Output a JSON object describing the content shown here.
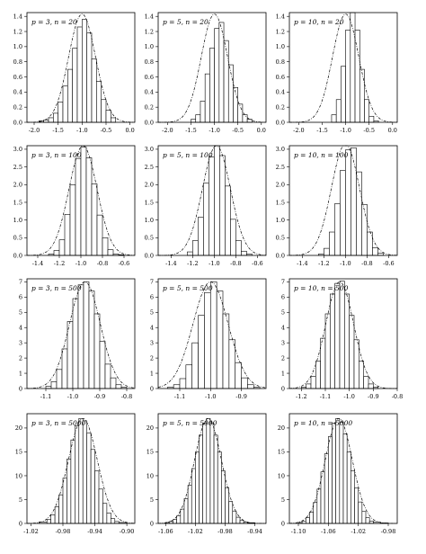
{
  "chart_data": [
    {
      "type": "bar",
      "annotation": "p = 3, n = 20",
      "xlim": [
        -2.15,
        0.1
      ],
      "ylim": [
        0,
        1.45
      ],
      "xticks": [
        -2.0,
        -1.5,
        -1.0,
        -0.5,
        0.0
      ],
      "xtick_labels": [
        "-2.0",
        "-1.5",
        "-1.0",
        "-0.5",
        "0.0"
      ],
      "yticks": [
        0,
        0.2,
        0.4,
        0.6,
        0.8,
        1.0,
        1.2,
        1.4
      ],
      "ytick_labels": [
        "0.0",
        "0.2",
        "0.4",
        "0.6",
        "0.8",
        "1.0",
        "1.2",
        "1.4"
      ],
      "bin_edges": [
        -1.9,
        -1.8,
        -1.7,
        -1.6,
        -1.5,
        -1.4,
        -1.3,
        -1.2,
        -1.1,
        -1.0,
        -0.9,
        -0.8,
        -0.7,
        -0.6,
        -0.5,
        -0.4,
        -0.3
      ],
      "values": [
        0.02,
        0.03,
        0.06,
        0.12,
        0.27,
        0.48,
        0.7,
        0.98,
        1.26,
        1.36,
        1.18,
        0.84,
        0.54,
        0.3,
        0.16,
        0.06
      ],
      "density": {
        "mean": -1.0,
        "sd": 0.28,
        "peak": 1.43
      }
    },
    {
      "type": "bar",
      "annotation": "p = 5, n = 20",
      "xlim": [
        -2.2,
        0.1
      ],
      "ylim": [
        0,
        1.45
      ],
      "xticks": [
        -2.0,
        -1.5,
        -1.0,
        -0.5,
        0.0
      ],
      "xtick_labels": [
        "-2.0",
        "-1.5",
        "-1.0",
        "-0.5",
        "0.0"
      ],
      "yticks": [
        0,
        0.2,
        0.4,
        0.6,
        0.8,
        1.0,
        1.2,
        1.4
      ],
      "ytick_labels": [
        "0.0",
        "0.2",
        "0.4",
        "0.6",
        "0.8",
        "1.0",
        "1.2",
        "1.4"
      ],
      "bin_edges": [
        -1.5,
        -1.4,
        -1.3,
        -1.2,
        -1.1,
        -1.0,
        -0.9,
        -0.8,
        -0.7,
        -0.6,
        -0.5,
        -0.4,
        -0.3,
        -0.2
      ],
      "values": [
        0.04,
        0.1,
        0.28,
        0.64,
        0.98,
        1.24,
        1.32,
        1.08,
        0.76,
        0.46,
        0.24,
        0.1,
        0.04
      ],
      "density": {
        "mean": -1.0,
        "sd": 0.28,
        "peak": 1.43
      }
    },
    {
      "type": "bar",
      "annotation": "p = 10, n = 20",
      "xlim": [
        -2.2,
        0.1
      ],
      "ylim": [
        0,
        1.45
      ],
      "xticks": [
        -2.0,
        -1.5,
        -1.0,
        -0.5,
        0.0
      ],
      "xtick_labels": [
        "-2.0",
        "-1.5",
        "-1.0",
        "-0.5",
        "0.0"
      ],
      "yticks": [
        0,
        0.2,
        0.4,
        0.6,
        0.8,
        1.0,
        1.2,
        1.4
      ],
      "ytick_labels": [
        "0.0",
        "0.2",
        "0.4",
        "0.6",
        "0.8",
        "1.0",
        "1.2",
        "1.4"
      ],
      "bin_edges": [
        -1.3,
        -1.2,
        -1.1,
        -1.0,
        -0.9,
        -0.8,
        -0.7,
        -0.6,
        -0.5,
        -0.4,
        -0.3
      ],
      "values": [
        0.1,
        0.3,
        0.74,
        1.22,
        1.45,
        1.22,
        0.7,
        0.3,
        0.08,
        0.02
      ],
      "density": {
        "mean": -1.0,
        "sd": 0.28,
        "peak": 1.43
      }
    },
    {
      "type": "bar",
      "annotation": "p = 3, n = 100",
      "xlim": [
        -1.5,
        -0.5
      ],
      "ylim": [
        0,
        3.1
      ],
      "xticks": [
        -1.4,
        -1.2,
        -1.0,
        -0.8,
        -0.6
      ],
      "xtick_labels": [
        "-1.4",
        "-1.2",
        "-1.0",
        "-0.8",
        "-0.6"
      ],
      "yticks": [
        0,
        0.5,
        1.0,
        1.5,
        2.0,
        2.5,
        3.0
      ],
      "ytick_labels": [
        "0.0",
        "0.5",
        "1.0",
        "1.5",
        "2.0",
        "2.5",
        "3.0"
      ],
      "bin_edges": [
        -1.3,
        -1.25,
        -1.2,
        -1.15,
        -1.1,
        -1.05,
        -1.0,
        -0.95,
        -0.9,
        -0.85,
        -0.8,
        -0.75,
        -0.7,
        -0.65,
        -0.6
      ],
      "values": [
        0.04,
        0.14,
        0.44,
        1.16,
        2.0,
        2.74,
        3.06,
        2.76,
        2.02,
        1.14,
        0.5,
        0.16,
        0.04,
        0.02
      ],
      "density": {
        "mean": -0.98,
        "sd": 0.13,
        "peak": 3.1
      }
    },
    {
      "type": "bar",
      "annotation": "p = 5, n = 100",
      "xlim": [
        -1.52,
        -0.52
      ],
      "ylim": [
        0,
        3.1
      ],
      "xticks": [
        -1.4,
        -1.2,
        -1.0,
        -0.8,
        -0.6
      ],
      "xtick_labels": [
        "-1.4",
        "-1.2",
        "-1.0",
        "-0.8",
        "-0.6"
      ],
      "yticks": [
        0,
        0.5,
        1.0,
        1.5,
        2.0,
        2.5,
        3.0
      ],
      "ytick_labels": [
        "0.0",
        "0.5",
        "1.0",
        "1.5",
        "2.0",
        "2.5",
        "3.0"
      ],
      "bin_edges": [
        -1.25,
        -1.2,
        -1.15,
        -1.1,
        -1.05,
        -1.0,
        -0.95,
        -0.9,
        -0.85,
        -0.8,
        -0.75,
        -0.7,
        -0.65
      ],
      "values": [
        0.1,
        0.42,
        1.08,
        2.04,
        2.78,
        3.1,
        2.82,
        1.96,
        1.02,
        0.42,
        0.12,
        0.04
      ],
      "density": {
        "mean": -0.98,
        "sd": 0.13,
        "peak": 3.1
      }
    },
    {
      "type": "bar",
      "annotation": "p = 10, n = 100",
      "xlim": [
        -1.52,
        -0.52
      ],
      "ylim": [
        0,
        3.1
      ],
      "xticks": [
        -1.4,
        -1.2,
        -1.0,
        -0.8,
        -0.6
      ],
      "xtick_labels": [
        "-1.4",
        "-1.2",
        "-1.0",
        "-0.8",
        "-0.6"
      ],
      "yticks": [
        0,
        0.5,
        1.0,
        1.5,
        2.0,
        2.5,
        3.0
      ],
      "ytick_labels": [
        "0.0",
        "0.5",
        "1.0",
        "1.5",
        "2.0",
        "2.5",
        "3.0"
      ],
      "bin_edges": [
        -1.25,
        -1.2,
        -1.15,
        -1.1,
        -1.05,
        -1.0,
        -0.95,
        -0.9,
        -0.85,
        -0.8,
        -0.75,
        -0.7,
        -0.65
      ],
      "values": [
        0.04,
        0.2,
        0.66,
        1.46,
        2.4,
        2.98,
        3.04,
        2.36,
        1.44,
        0.66,
        0.22,
        0.06
      ],
      "density": {
        "mean": -1.0,
        "sd": 0.13,
        "peak": 3.15
      }
    },
    {
      "type": "bar",
      "annotation": "p = 3, n = 500",
      "xlim": [
        -1.17,
        -0.77
      ],
      "ylim": [
        0,
        7.2
      ],
      "xticks": [
        -1.1,
        -1.0,
        -0.9,
        -0.8
      ],
      "xtick_labels": [
        "-1.1",
        "-1.0",
        "-0.9",
        "-0.8"
      ],
      "yticks": [
        0,
        1,
        2,
        3,
        4,
        5,
        6,
        7
      ],
      "ytick_labels": [
        "0",
        "1",
        "2",
        "3",
        "4",
        "5",
        "6",
        "7"
      ],
      "bin_edges": [
        -1.1,
        -1.08,
        -1.06,
        -1.04,
        -1.02,
        -1.0,
        -0.98,
        -0.96,
        -0.94,
        -0.92,
        -0.9,
        -0.88,
        -0.86,
        -0.84,
        -0.82,
        -0.8
      ],
      "values": [
        0.15,
        0.45,
        1.25,
        2.6,
        4.4,
        5.9,
        6.8,
        7.0,
        6.4,
        4.9,
        3.1,
        1.6,
        0.7,
        0.25,
        0.1
      ],
      "density": {
        "mean": -0.955,
        "sd": 0.057,
        "peak": 7.0
      }
    },
    {
      "type": "bar",
      "annotation": "p = 5, n = 500",
      "xlim": [
        -1.17,
        -0.82
      ],
      "ylim": [
        0,
        7.2
      ],
      "xticks": [
        -1.1,
        -1.0,
        -0.9
      ],
      "xtick_labels": [
        "-1.1",
        "-1.0",
        "-0.9"
      ],
      "yticks": [
        0,
        1,
        2,
        3,
        4,
        5,
        6,
        7
      ],
      "ytick_labels": [
        "0",
        "1",
        "2",
        "3",
        "4",
        "5",
        "6",
        "7"
      ],
      "bin_edges": [
        -1.14,
        -1.12,
        -1.1,
        -1.08,
        -1.06,
        -1.04,
        -1.02,
        -1.0,
        -0.98,
        -0.96,
        -0.94,
        -0.92,
        -0.9,
        -0.88,
        -0.86,
        -0.84
      ],
      "values": [
        0.08,
        0.25,
        0.65,
        1.55,
        3.0,
        4.8,
        6.3,
        7.0,
        6.4,
        4.9,
        3.2,
        1.7,
        0.7,
        0.25,
        0.08
      ],
      "density": {
        "mean": -1.0,
        "sd": 0.057,
        "peak": 7.0
      }
    },
    {
      "type": "bar",
      "annotation": "p = 10, n = 500",
      "xlim": [
        -1.25,
        -0.8
      ],
      "ylim": [
        0,
        7.2
      ],
      "xticks": [
        -1.2,
        -1.1,
        -1.0,
        -0.9,
        -0.8
      ],
      "xtick_labels": [
        "-1.2",
        "-1.1",
        "-1.0",
        "-0.9",
        "-0.8"
      ],
      "yticks": [
        0,
        1,
        2,
        3,
        4,
        5,
        6,
        7
      ],
      "ytick_labels": [
        "0",
        "1",
        "2",
        "3",
        "4",
        "5",
        "6",
        "7"
      ],
      "bin_edges": [
        -1.2,
        -1.18,
        -1.16,
        -1.14,
        -1.12,
        -1.1,
        -1.08,
        -1.06,
        -1.04,
        -1.02,
        -1.0,
        -0.98,
        -0.96,
        -0.94,
        -0.92,
        -0.9,
        -0.88
      ],
      "values": [
        0.1,
        0.3,
        0.8,
        1.8,
        3.3,
        4.9,
        6.2,
        6.9,
        7.05,
        6.2,
        4.8,
        3.2,
        1.8,
        0.8,
        0.3,
        0.1
      ],
      "density": {
        "mean": -1.04,
        "sd": 0.058,
        "peak": 7.0
      }
    },
    {
      "type": "bar",
      "annotation": "p = 3, n = 5000",
      "xlim": [
        -1.025,
        -0.89
      ],
      "ylim": [
        0,
        23
      ],
      "xticks": [
        -1.02,
        -0.98,
        -0.94,
        -0.9
      ],
      "xtick_labels": [
        "-1.02",
        "-0.98",
        "-0.94",
        "-0.90"
      ],
      "yticks": [
        0,
        5,
        10,
        15,
        20
      ],
      "ytick_labels": [
        "0",
        "5",
        "10",
        "15",
        "20"
      ],
      "bin_edges": [
        -1.01,
        -1.0,
        -0.995,
        -0.99,
        -0.985,
        -0.98,
        -0.975,
        -0.97,
        -0.965,
        -0.96,
        -0.955,
        -0.95,
        -0.945,
        -0.94,
        -0.935,
        -0.93,
        -0.925,
        -0.92,
        -0.915,
        -0.91,
        -0.9
      ],
      "values": [
        0.3,
        0.8,
        1.8,
        3.5,
        6.0,
        9.5,
        13.5,
        17.5,
        20.5,
        22.0,
        21.5,
        19.0,
        15.5,
        11.0,
        7.2,
        4.2,
        2.2,
        1.0,
        0.4,
        0.2
      ],
      "density": {
        "mean": -0.955,
        "sd": 0.018,
        "peak": 22.0
      }
    },
    {
      "type": "bar",
      "annotation": "p = 5, n = 5000",
      "xlim": [
        -1.07,
        -0.925
      ],
      "ylim": [
        0,
        23
      ],
      "xticks": [
        -1.06,
        -1.02,
        -0.98,
        -0.94
      ],
      "xtick_labels": [
        "-1.06",
        "-1.02",
        "-0.98",
        "-0.94"
      ],
      "yticks": [
        0,
        5,
        10,
        15,
        20
      ],
      "ytick_labels": [
        "0",
        "5",
        "10",
        "15",
        "20"
      ],
      "bin_edges": [
        -1.06,
        -1.055,
        -1.05,
        -1.045,
        -1.04,
        -1.035,
        -1.03,
        -1.025,
        -1.02,
        -1.015,
        -1.01,
        -1.005,
        -1.0,
        -0.995,
        -0.99,
        -0.985,
        -0.98,
        -0.975,
        -0.97,
        -0.965,
        -0.96,
        -0.955,
        -0.95,
        -0.94
      ],
      "values": [
        0.2,
        0.4,
        0.8,
        1.6,
        3.0,
        5.2,
        8.0,
        11.5,
        15.0,
        18.5,
        21.0,
        22.0,
        21.0,
        18.5,
        15.0,
        11.0,
        7.5,
        4.6,
        2.6,
        1.3,
        0.6,
        0.3,
        0.15
      ],
      "density": {
        "mean": -1.003,
        "sd": 0.018,
        "peak": 22.0
      }
    },
    {
      "type": "bar",
      "annotation": "p = 10, n = 5000",
      "xlim": [
        -1.112,
        -0.968
      ],
      "ylim": [
        0,
        23
      ],
      "xticks": [
        -1.1,
        -1.06,
        -1.02,
        -0.98
      ],
      "xtick_labels": [
        "-1.10",
        "-1.06",
        "-1.02",
        "-0.98"
      ],
      "yticks": [
        0,
        5,
        10,
        15,
        20
      ],
      "ytick_labels": [
        "0",
        "5",
        "10",
        "15",
        "20"
      ],
      "bin_edges": [
        -1.1,
        -1.095,
        -1.09,
        -1.085,
        -1.08,
        -1.075,
        -1.07,
        -1.065,
        -1.06,
        -1.055,
        -1.05,
        -1.045,
        -1.04,
        -1.035,
        -1.03,
        -1.025,
        -1.02,
        -1.015,
        -1.01,
        -1.005,
        -1.0,
        -0.99,
        -0.98
      ],
      "values": [
        0.2,
        0.5,
        1.2,
        2.4,
        4.4,
        7.2,
        10.8,
        14.6,
        18.2,
        21.0,
        22.0,
        21.2,
        18.8,
        15.0,
        11.0,
        7.4,
        4.5,
        2.5,
        1.2,
        0.5,
        0.25,
        0.1
      ],
      "density": {
        "mean": -1.046,
        "sd": 0.018,
        "peak": 22.0
      }
    }
  ]
}
